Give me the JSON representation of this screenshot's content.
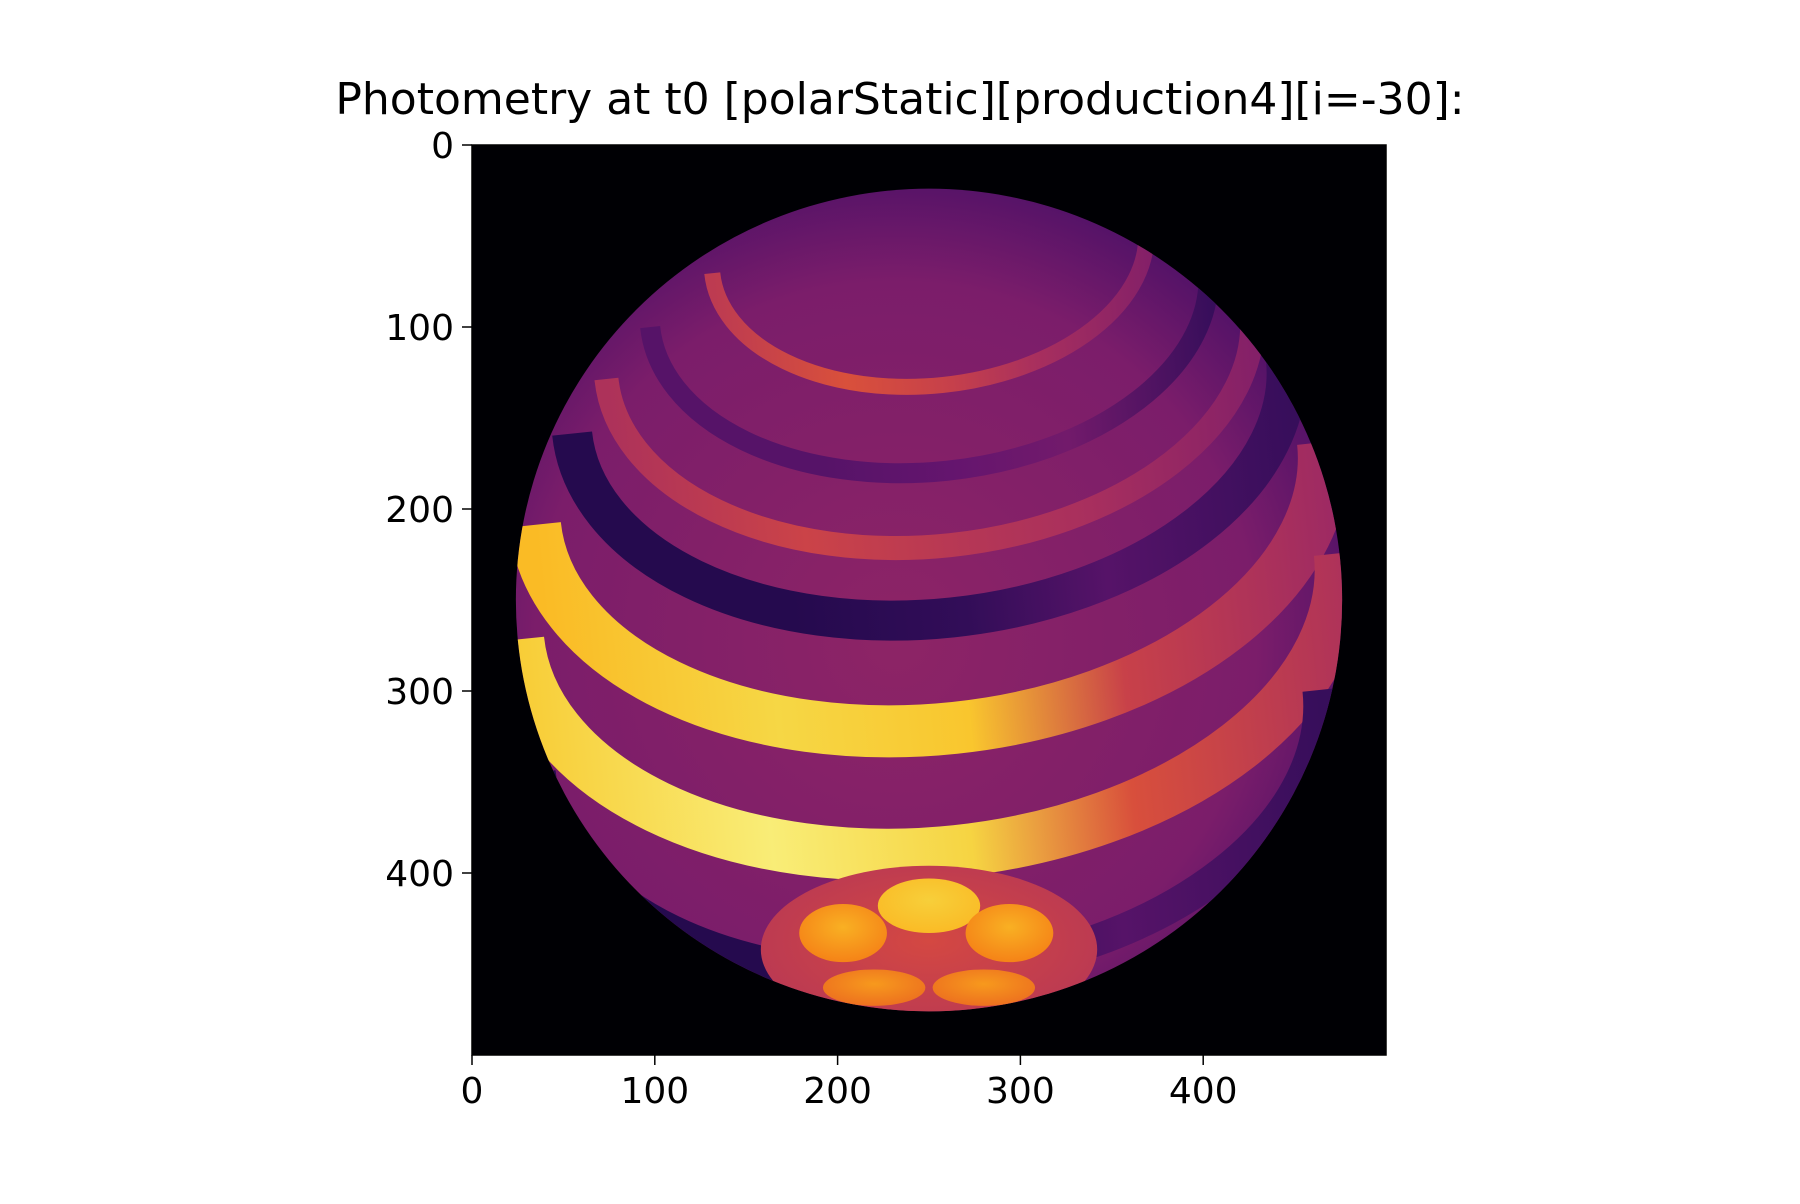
{
  "chart_data": {
    "type": "heatmap",
    "title": "Photometry at t0 [polarStatic][production4][i=-30]:",
    "xlabel": "",
    "ylabel": "",
    "xlim": [
      0,
      500
    ],
    "ylim": [
      500,
      0
    ],
    "x_ticks": [
      0,
      100,
      200,
      300,
      400
    ],
    "y_ticks": [
      0,
      100,
      200,
      300,
      400
    ],
    "colormap": "inferno",
    "grid": false,
    "background_color": "#000004",
    "image": {
      "object": "inclined banded star, rendered photometry map",
      "disk_center": [
        250,
        250
      ],
      "disk_radius": 226,
      "inclination_deg": -30,
      "band_tilt_deg": -6,
      "bands": [
        {
          "latitude_offset": -192,
          "thickness": 8,
          "intensity": 0.52
        },
        {
          "latitude_offset": -166,
          "thickness": 10,
          "intensity": 0.22
        },
        {
          "latitude_offset": -140,
          "thickness": 12,
          "intensity": 0.48
        },
        {
          "latitude_offset": -112,
          "thickness": 20,
          "intensity": 0.12
        },
        {
          "latitude_offset": -64,
          "thickness": 26,
          "intensity": 0.86
        },
        {
          "latitude_offset": -2,
          "thickness": 26,
          "intensity": 0.94
        },
        {
          "latitude_offset": 72,
          "thickness": 16,
          "intensity": 0.12
        }
      ],
      "polar_cap": {
        "center": [
          250,
          442
        ],
        "rx": 92,
        "ry": 46,
        "intensity": 0.5
      },
      "spots": [
        {
          "center": [
            250,
            418
          ],
          "rx": 28,
          "ry": 15,
          "intensity": 0.82
        },
        {
          "center": [
            203,
            433
          ],
          "rx": 24,
          "ry": 16,
          "intensity": 0.72
        },
        {
          "center": [
            294,
            433
          ],
          "rx": 24,
          "ry": 16,
          "intensity": 0.72
        },
        {
          "center": [
            220,
            463
          ],
          "rx": 28,
          "ry": 10,
          "intensity": 0.68
        },
        {
          "center": [
            280,
            463
          ],
          "rx": 28,
          "ry": 10,
          "intensity": 0.68
        }
      ]
    },
    "colors": {
      "background": "#000004",
      "dark": "#420a68",
      "base": "#7b1f72",
      "mid": "#b5367a",
      "hot": "#ed6925",
      "bright": "#fbb61a",
      "peak": "#f5db4b"
    }
  }
}
